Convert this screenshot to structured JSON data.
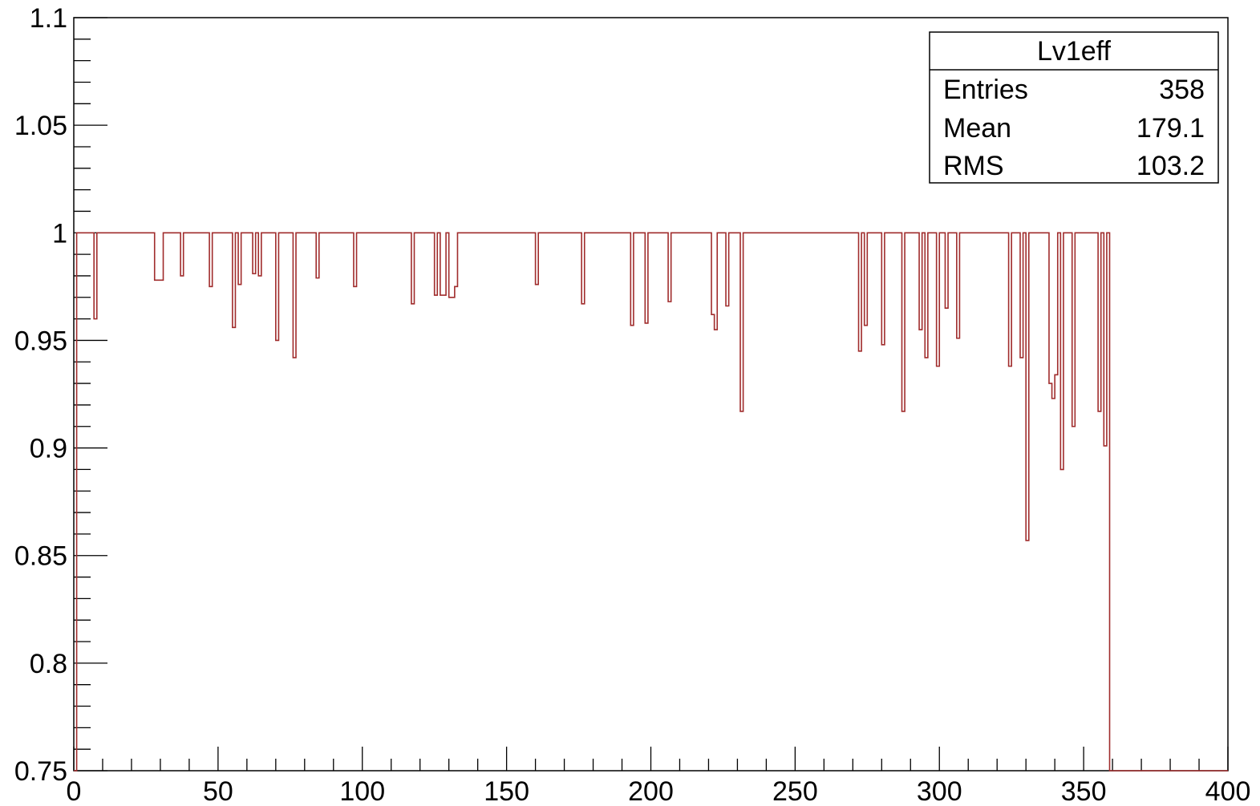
{
  "chart_data": {
    "type": "line",
    "title": "",
    "xlabel": "",
    "ylabel": "",
    "xlim": [
      0,
      400
    ],
    "ylim": [
      0.75,
      1.1
    ],
    "x_ticks": [
      0,
      50,
      100,
      150,
      200,
      250,
      300,
      350,
      400
    ],
    "x_tick_labels": [
      "0",
      "50",
      "100",
      "150",
      "200",
      "250",
      "300",
      "350",
      "400"
    ],
    "y_ticks": [
      0.75,
      0.8,
      0.85,
      0.9,
      0.95,
      1,
      1.05,
      1.1
    ],
    "y_tick_labels": [
      "0.75",
      "0.8",
      "0.85",
      "0.9",
      "0.95",
      "1",
      "1.05",
      "1.1"
    ],
    "grid": false,
    "line_color": "#a02c2c",
    "series": [
      {
        "bin_width": 1,
        "x_start": 0,
        "default_value": 1.0,
        "values_to_x": 359,
        "dips": [
          [
            7,
            0.96
          ],
          [
            28,
            0.978
          ],
          [
            29,
            0.978
          ],
          [
            30,
            0.978
          ],
          [
            37,
            0.98
          ],
          [
            47,
            0.975
          ],
          [
            55,
            0.956
          ],
          [
            57,
            0.976
          ],
          [
            62,
            0.981
          ],
          [
            64,
            0.98
          ],
          [
            70,
            0.95
          ],
          [
            76,
            0.942
          ],
          [
            84,
            0.979
          ],
          [
            97,
            0.975
          ],
          [
            117,
            0.967
          ],
          [
            125,
            0.971
          ],
          [
            127,
            0.971
          ],
          [
            128,
            0.971
          ],
          [
            130,
            0.97
          ],
          [
            131,
            0.97
          ],
          [
            132,
            0.975
          ],
          [
            160,
            0.976
          ],
          [
            176,
            0.967
          ],
          [
            193,
            0.957
          ],
          [
            198,
            0.958
          ],
          [
            206,
            0.968
          ],
          [
            221,
            0.962
          ],
          [
            222,
            0.955
          ],
          [
            226,
            0.966
          ],
          [
            231,
            0.917
          ],
          [
            272,
            0.945
          ],
          [
            274,
            0.957
          ],
          [
            280,
            0.948
          ],
          [
            287,
            0.917
          ],
          [
            293,
            0.955
          ],
          [
            295,
            0.942
          ],
          [
            299,
            0.938
          ],
          [
            302,
            0.965
          ],
          [
            306,
            0.951
          ],
          [
            324,
            0.938
          ],
          [
            328,
            0.942
          ],
          [
            330,
            0.857
          ],
          [
            338,
            0.93
          ],
          [
            339,
            0.923
          ],
          [
            340,
            0.934
          ],
          [
            342,
            0.89
          ],
          [
            346,
            0.91
          ],
          [
            355,
            0.917
          ],
          [
            357,
            0.901
          ]
        ]
      }
    ],
    "stats_box": {
      "title": "Lv1eff",
      "rows": [
        {
          "label": "Entries",
          "value": "358"
        },
        {
          "label": "Mean",
          "value": "179.1"
        },
        {
          "label": "RMS",
          "value": "103.2"
        }
      ]
    }
  }
}
